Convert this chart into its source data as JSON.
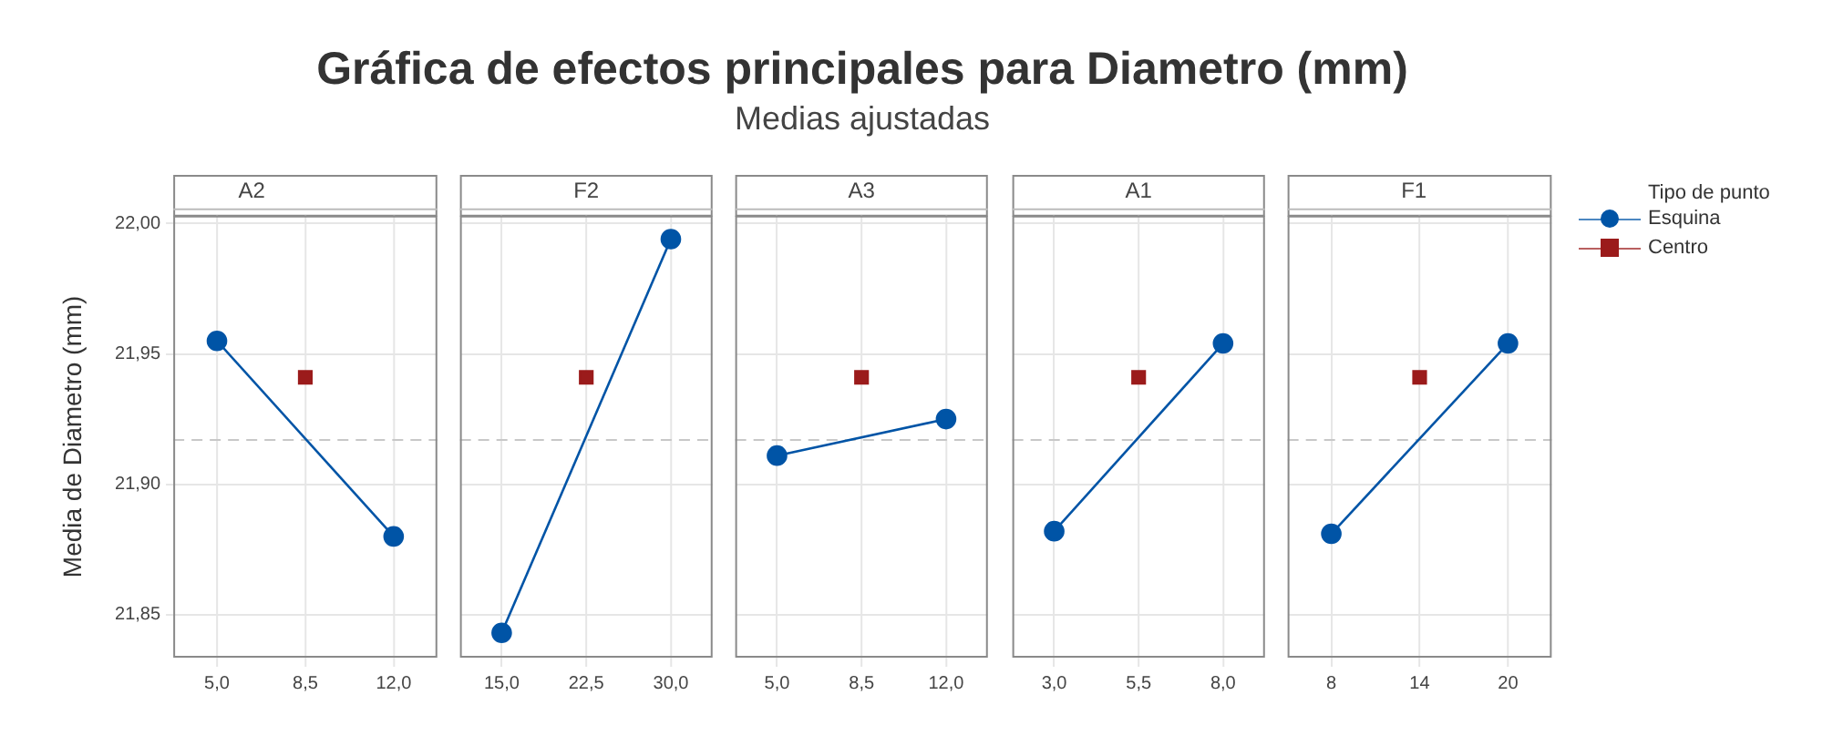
{
  "chart_data": [
    {
      "type": "other",
      "title": "Gráfica de efectos principales para Diametro (mm)",
      "subtitle": "Medias ajustadas"
    },
    {
      "type": "line",
      "title": "A2",
      "xlim": [
        3.27,
        13.73
      ],
      "xticks": [
        {
          "value": 5,
          "label": "5,0"
        },
        {
          "value": 8.5,
          "label": "8,5"
        },
        {
          "value": 12,
          "label": "12,0"
        }
      ],
      "ylim": [
        21.8335,
        22.003
      ],
      "yticks": [
        {
          "value": 21.85,
          "label": "21,85"
        },
        {
          "value": 21.9,
          "label": "21,90"
        },
        {
          "value": 21.95,
          "label": "21,95"
        },
        {
          "value": 22,
          "label": "22,00"
        }
      ],
      "ylabel": "Media de Diametro (mm)",
      "grid": true,
      "marker": "circle",
      "ref_lines": [
        {
          "axis": "y",
          "value": 21.917,
          "color": "#c8c8c8",
          "line_style": "dashed"
        }
      ],
      "series": [
        {
          "color": "#0054a6",
          "x": [
            5,
            12
          ],
          "values": [
            21.955,
            21.88
          ]
        },
        {
          "type": "scatter",
          "marker": "square",
          "color": "#9b1b1b",
          "x": [
            8.5
          ],
          "values": [
            21.941
          ]
        }
      ]
    },
    {
      "type": "line",
      "title": "F2",
      "xlim": [
        11.3,
        33.7
      ],
      "xticks": [
        {
          "value": 15,
          "label": "15,0"
        },
        {
          "value": 22.5,
          "label": "22,5"
        },
        {
          "value": 30,
          "label": "30,0"
        }
      ],
      "ylim": [
        21.8335,
        22.003
      ],
      "yticks": [
        21.85,
        21.9,
        21.95,
        22
      ],
      "tick_labels": "x",
      "grid": true,
      "marker": "circle",
      "ref_lines": [
        {
          "axis": "y",
          "value": 21.917,
          "color": "#c8c8c8",
          "line_style": "dashed"
        }
      ],
      "series": [
        {
          "color": "#0054a6",
          "x": [
            15,
            30
          ],
          "values": [
            21.843,
            21.994
          ]
        },
        {
          "type": "scatter",
          "marker": "square",
          "color": "#9b1b1b",
          "x": [
            22.5
          ],
          "values": [
            21.941
          ]
        }
      ]
    },
    {
      "type": "line",
      "title": "A3",
      "xlim": [
        3.27,
        13.73
      ],
      "xticks": [
        {
          "value": 5,
          "label": "5,0"
        },
        {
          "value": 8.5,
          "label": "8,5"
        },
        {
          "value": 12,
          "label": "12,0"
        }
      ],
      "ylim": [
        21.8335,
        22.003
      ],
      "yticks": [
        21.85,
        21.9,
        21.95,
        22
      ],
      "tick_labels": "x",
      "grid": true,
      "marker": "circle",
      "ref_lines": [
        {
          "axis": "y",
          "value": 21.917,
          "color": "#c8c8c8",
          "line_style": "dashed"
        }
      ],
      "series": [
        {
          "color": "#0054a6",
          "x": [
            5,
            12
          ],
          "values": [
            21.911,
            21.925
          ]
        },
        {
          "type": "scatter",
          "marker": "square",
          "color": "#9b1b1b",
          "x": [
            8.5
          ],
          "values": [
            21.941
          ]
        }
      ]
    },
    {
      "type": "line",
      "title": "A1",
      "xlim": [
        1.76,
        9.24
      ],
      "xticks": [
        {
          "value": 3,
          "label": "3,0"
        },
        {
          "value": 5.5,
          "label": "5,5"
        },
        {
          "value": 8,
          "label": "8,0"
        }
      ],
      "ylim": [
        21.8335,
        22.003
      ],
      "yticks": [
        21.85,
        21.9,
        21.95,
        22
      ],
      "tick_labels": "x",
      "grid": true,
      "marker": "circle",
      "ref_lines": [
        {
          "axis": "y",
          "value": 21.917,
          "color": "#c8c8c8",
          "line_style": "dashed"
        }
      ],
      "series": [
        {
          "color": "#0054a6",
          "x": [
            3,
            8
          ],
          "values": [
            21.882,
            21.954
          ]
        },
        {
          "type": "scatter",
          "marker": "square",
          "color": "#9b1b1b",
          "x": [
            5.5
          ],
          "values": [
            21.941
          ]
        }
      ]
    },
    {
      "type": "line",
      "title": "F1",
      "xlim": [
        5.03,
        22.97
      ],
      "xticks": [
        8,
        14,
        20
      ],
      "ylim": [
        21.8335,
        22.003
      ],
      "yticks": [
        21.85,
        21.9,
        21.95,
        22
      ],
      "tick_labels": "x",
      "grid": true,
      "marker": "circle",
      "legend": "right",
      "legend_title": "Tipo de punto",
      "ref_lines": [
        {
          "axis": "y",
          "value": 21.917,
          "color": "#c8c8c8",
          "line_style": "dashed"
        }
      ],
      "series": [
        {
          "name": "Esquina",
          "color": "#0054a6",
          "x": [
            8,
            20
          ],
          "values": [
            21.881,
            21.954
          ]
        },
        {
          "name": "Centro",
          "type": "scatter",
          "marker": "square",
          "color": "#9b1b1b",
          "x": [
            14
          ],
          "values": [
            21.941
          ]
        }
      ]
    }
  ]
}
